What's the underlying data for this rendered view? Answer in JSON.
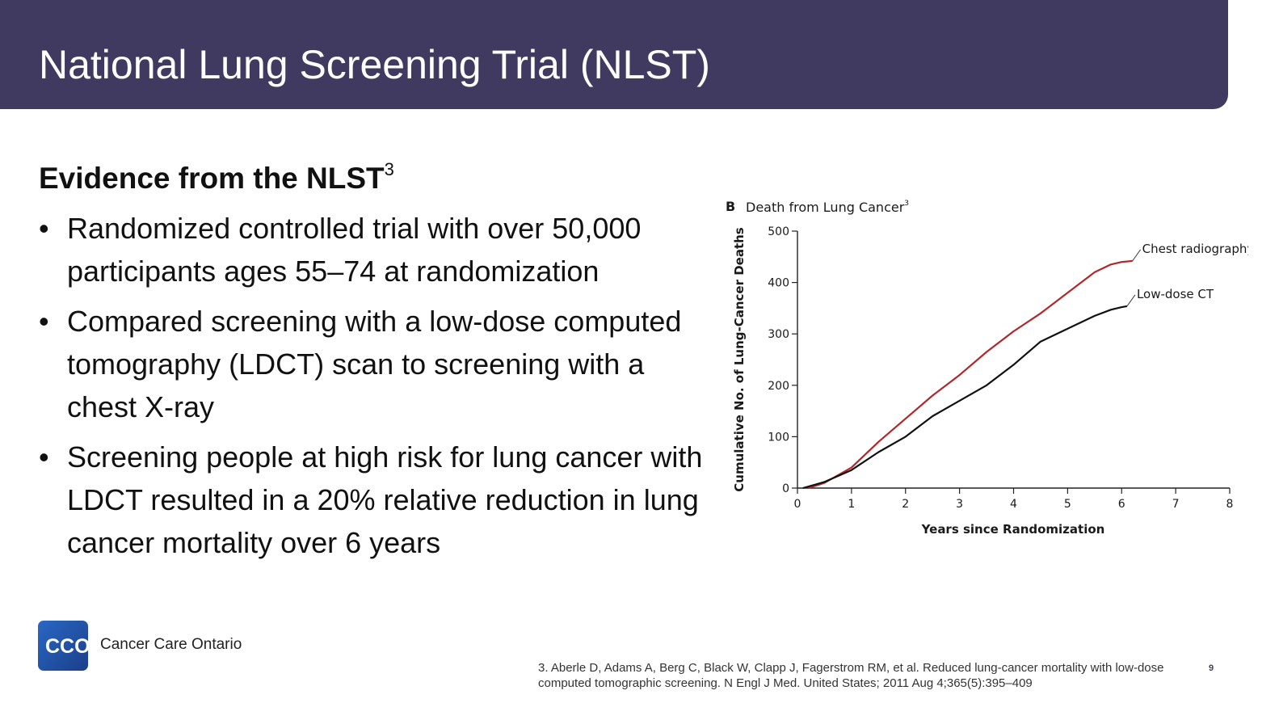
{
  "slide": {
    "title": "National Lung Screening Trial (NLST)",
    "heading": "Evidence from the NLST",
    "heading_superscript": "3",
    "bullet_symbol": "•",
    "bullets": [
      "Randomized controlled trial with over 50,000 participants ages 55–74 at randomization",
      "Compared screening with a low-dose computed tomography (LDCT) scan to screening with a chest X-ray",
      "Screening people at high risk for lung cancer with LDCT resulted in a 20% relative reduction in lung cancer mortality over 6 years"
    ],
    "logo": {
      "letters": "CCO",
      "name": "Cancer Care Ontario"
    },
    "citation": "3. Aberle D, Adams A, Berg C, Black W, Clapp J, Fagerstrom RM, et al. Reduced lung-cancer mortality with low-dose computed tomographic screening. N Engl J Med. United States; 2011 Aug 4;365(5):395–409",
    "page_number": "9"
  },
  "colors": {
    "title_bar": "#413a60",
    "chest_radiography_line": "#b0282a",
    "low_dose_ct_line": "#111111"
  },
  "chart_data": {
    "type": "line",
    "panel_label": "B",
    "title": "Death from Lung Cancer",
    "title_superscript": "3",
    "xlabel": "Years since Randomization",
    "ylabel": "Cumulative No. of Lung-Cancer Deaths",
    "xlim": [
      0,
      8
    ],
    "ylim": [
      0,
      500
    ],
    "xticks": [
      0,
      1,
      2,
      3,
      4,
      5,
      6,
      7,
      8
    ],
    "yticks": [
      0,
      100,
      200,
      300,
      400,
      500
    ],
    "grid": false,
    "series": [
      {
        "name": "Chest radiography",
        "color": "#b0282a",
        "x": [
          0.2,
          0.5,
          1.0,
          1.5,
          2.0,
          2.5,
          3.0,
          3.5,
          4.0,
          4.5,
          5.0,
          5.5,
          5.8,
          6.0,
          6.2
        ],
        "y": [
          0,
          10,
          40,
          90,
          135,
          180,
          220,
          265,
          305,
          340,
          380,
          420,
          435,
          440,
          442
        ]
      },
      {
        "name": "Low-dose CT",
        "color": "#111111",
        "x": [
          0.1,
          0.5,
          1.0,
          1.5,
          2.0,
          2.5,
          3.0,
          3.5,
          4.0,
          4.5,
          5.0,
          5.5,
          5.8,
          6.0,
          6.1
        ],
        "y": [
          0,
          12,
          35,
          70,
          100,
          140,
          170,
          200,
          240,
          285,
          310,
          335,
          347,
          352,
          354
        ]
      }
    ]
  }
}
